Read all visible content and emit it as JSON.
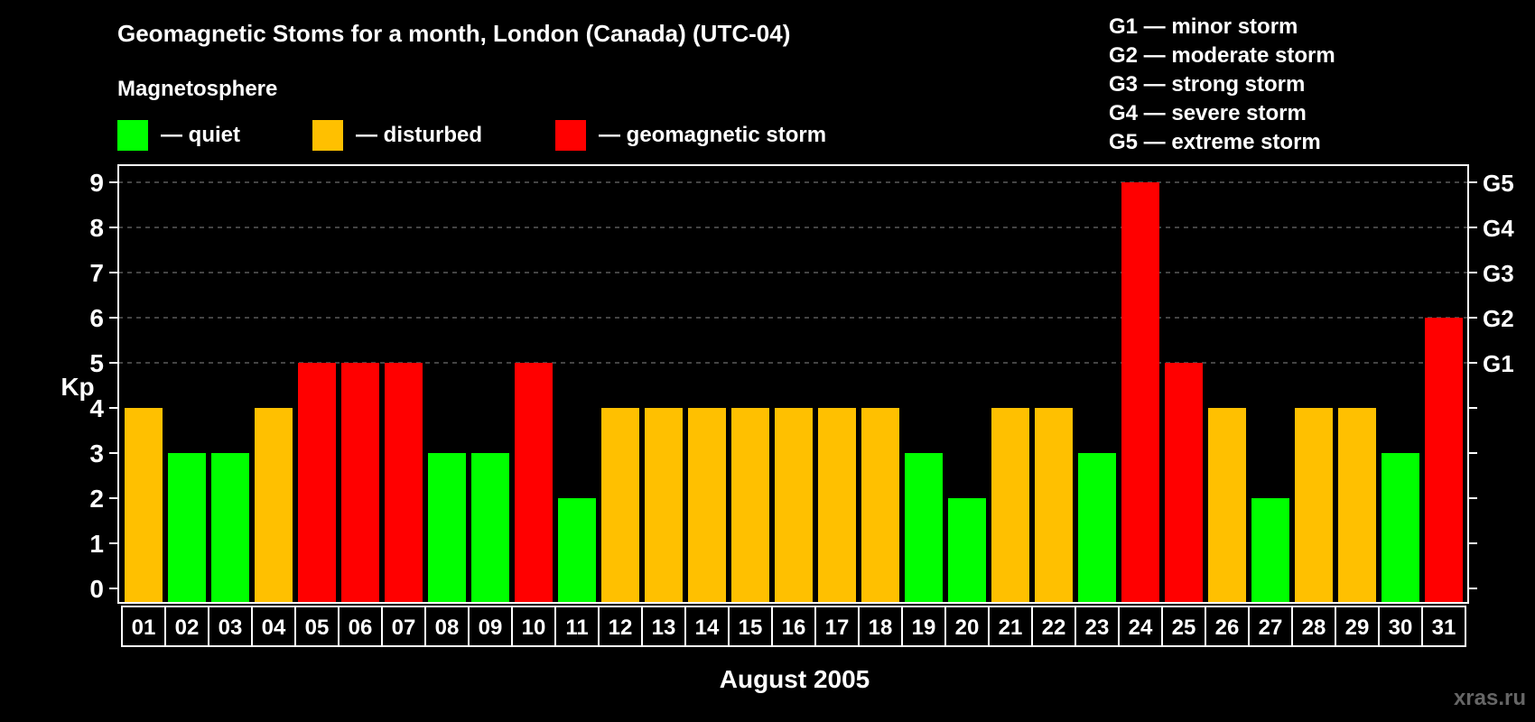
{
  "title": "Geomagnetic Stoms for a month, London (Canada) (UTC-04)",
  "subtitle": "Magnetosphere",
  "legend": [
    {
      "label": "— quiet",
      "color": "#00ff00"
    },
    {
      "label": "— disturbed",
      "color": "#ffc000"
    },
    {
      "label": "— geomagnetic storm",
      "color": "#ff0000"
    }
  ],
  "g_scale": [
    "G1 — minor storm",
    "G2 — moderate storm",
    "G3 — strong storm",
    "G4 — severe storm",
    "G5 — extreme storm"
  ],
  "watermark": "xras.ru",
  "chart_data": {
    "type": "bar",
    "title": "Geomagnetic Stoms for a month, London (Canada) (UTC-04)",
    "xlabel": "August 2005",
    "ylabel": "Kp",
    "ylim": [
      0,
      9
    ],
    "yticks": [
      0,
      1,
      2,
      3,
      4,
      5,
      6,
      7,
      8,
      9
    ],
    "right_ticks": [
      {
        "kp": 5,
        "label": "G1"
      },
      {
        "kp": 6,
        "label": "G2"
      },
      {
        "kp": 7,
        "label": "G3"
      },
      {
        "kp": 8,
        "label": "G4"
      },
      {
        "kp": 9,
        "label": "G5"
      }
    ],
    "grid": "dashed at Kp 5-9",
    "categories": [
      "01",
      "02",
      "03",
      "04",
      "05",
      "06",
      "07",
      "08",
      "09",
      "10",
      "11",
      "12",
      "13",
      "14",
      "15",
      "16",
      "17",
      "18",
      "19",
      "20",
      "21",
      "22",
      "23",
      "24",
      "25",
      "26",
      "27",
      "28",
      "29",
      "30",
      "31"
    ],
    "values": [
      4,
      3,
      3,
      4,
      5,
      5,
      5,
      3,
      3,
      5,
      2,
      4,
      4,
      4,
      4,
      4,
      4,
      4,
      3,
      2,
      4,
      4,
      3,
      9,
      5,
      4,
      2,
      4,
      4,
      3,
      6
    ],
    "colors": {
      "quiet": "#00ff00",
      "disturbed": "#ffc000",
      "storm": "#ff0000"
    }
  }
}
